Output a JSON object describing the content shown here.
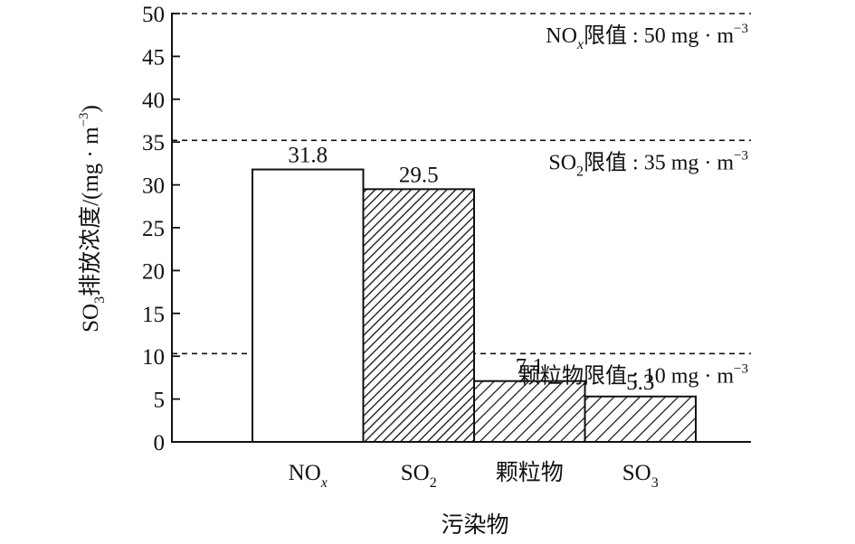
{
  "chart_data": {
    "type": "bar",
    "categories": [
      "NOx",
      "SO2",
      "颗粒物",
      "SO3"
    ],
    "category_labels": [
      {
        "main": "NO",
        "sub": "x",
        "sub_italic": true
      },
      {
        "main": "SO",
        "sub": "2",
        "sub_italic": false
      },
      {
        "main": "颗粒物",
        "sub": "",
        "sub_italic": false
      },
      {
        "main": "SO",
        "sub": "3",
        "sub_italic": false
      }
    ],
    "values": [
      31.8,
      29.5,
      7.1,
      5.3
    ],
    "data_labels": [
      "31.8",
      "29.5",
      "7.1",
      "5.3"
    ],
    "fills": [
      "none",
      "hatch-dense",
      "hatch-medium",
      "hatch-wide"
    ],
    "xlabel": "污染物",
    "ylabel": {
      "prefix": "SO",
      "sub": "3",
      "text": "排放浓度/(mg · m",
      "sup": "−3",
      "suffix": ")"
    },
    "ylim": [
      0,
      50
    ],
    "yticks": [
      0,
      5,
      10,
      15,
      20,
      25,
      30,
      35,
      40,
      45,
      50
    ],
    "grid": false,
    "limit_lines": [
      {
        "value": 50,
        "label": {
          "pre": "NO",
          "sub": "x",
          "sub_italic": true,
          "text": "限值 : 50 mg · m",
          "sup": "−3"
        }
      },
      {
        "value": 35.2,
        "label": {
          "pre": "SO",
          "sub": "2",
          "sub_italic": false,
          "text": "限值 : 35 mg · m",
          "sup": "−3"
        }
      },
      {
        "value": 10.3,
        "label": {
          "pre": "颗粒物",
          "sub": "",
          "sub_italic": false,
          "text": "限值 : 10 mg · m",
          "sup": "−3"
        }
      }
    ],
    "colors": {
      "stroke": "#111111",
      "background": "#ffffff"
    }
  }
}
